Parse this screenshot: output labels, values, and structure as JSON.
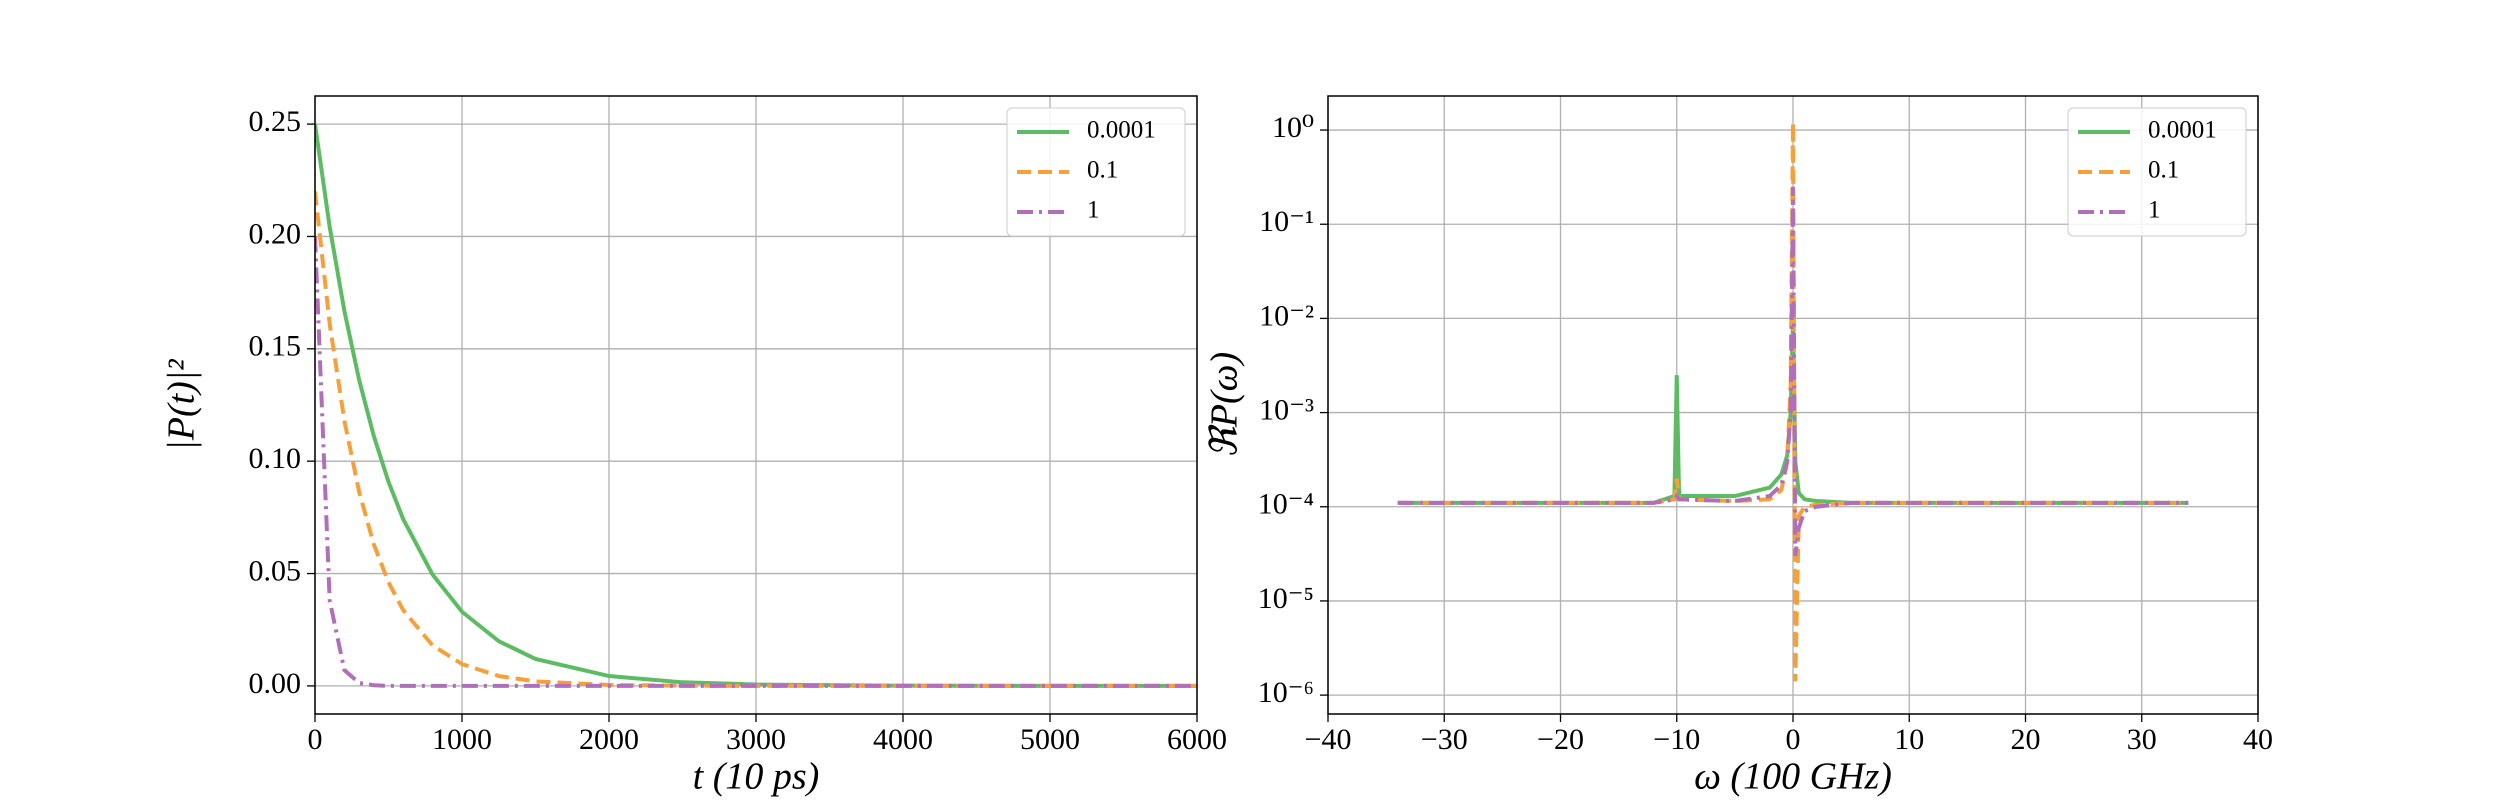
{
  "chart_data": [
    {
      "type": "line",
      "xlabel": "t (10 ps)",
      "ylabel": "|P(t)|²",
      "x": [
        0,
        100,
        200,
        300,
        400,
        500,
        600,
        800,
        1000,
        1250,
        1500,
        2000,
        2500,
        3000,
        4000,
        5000,
        6000
      ],
      "series": [
        {
          "name": "0.0001",
          "color": "#5dbb63",
          "dash": "solid",
          "values": [
            0.25,
            0.2042,
            0.1668,
            0.1362,
            0.1112,
            0.0908,
            0.0742,
            0.0495,
            0.033,
            0.0199,
            0.012,
            0.0044,
            0.0016,
            0.0006,
            0.0001,
            0,
            0
          ]
        },
        {
          "name": "0.1",
          "color": "#f5a03a",
          "dash": "dashed",
          "values": [
            0.22,
            0.161,
            0.118,
            0.0864,
            0.063,
            0.0461,
            0.0337,
            0.018,
            0.0097,
            0.0044,
            0.002,
            0.0004,
            0.0001,
            0,
            0,
            0,
            0
          ]
        },
        {
          "name": "1",
          "color": "#b06fb8",
          "dash": "dashdot",
          "values": [
            0.2,
            0.038,
            0.007,
            0.0013,
            0.0003,
            0,
            0,
            0,
            0,
            0,
            0,
            0,
            0,
            0,
            0,
            0,
            0
          ]
        }
      ],
      "xlim": [
        0,
        6000
      ],
      "xticks": [
        0,
        1000,
        2000,
        3000,
        4000,
        5000,
        6000
      ],
      "ylim": [
        -0.0125,
        0.2625
      ],
      "yticks": [
        {
          "value": 0,
          "label": "0.00"
        },
        {
          "value": 0.05,
          "label": "0.05"
        },
        {
          "value": 0.1,
          "label": "0.10"
        },
        {
          "value": 0.15,
          "label": "0.15"
        },
        {
          "value": 0.2,
          "label": "0.20"
        },
        {
          "value": 0.25,
          "label": "0.25"
        }
      ],
      "log": false,
      "grid": true,
      "legend": "upper right"
    },
    {
      "type": "line",
      "xlabel": "ω (100 GHz)",
      "ylabel": "ℜP(ω)",
      "x": [
        -34,
        -12,
        -10.2,
        -10,
        -9.8,
        -5,
        -2,
        -1,
        -0.5,
        -0.2,
        0,
        0.2,
        0.5,
        1,
        2,
        5,
        12,
        34
      ],
      "series": [
        {
          "name": "0.0001",
          "color": "#5dbb63",
          "dash": "solid",
          "values": [
            0.00011,
            0.00011,
            0.00013,
            0.0025,
            0.00013,
            0.00013,
            0.00016,
            0.00022,
            0.00035,
            0.001,
            0.01,
            0.0003,
            0.00014,
            0.00012,
            0.000115,
            0.00011,
            0.00011,
            0.00011
          ]
        },
        {
          "name": "0.1",
          "color": "#f5a03a",
          "dash": "dashed",
          "values": [
            0.00011,
            0.00011,
            0.00012,
            0.0002,
            0.00012,
            0.000115,
            0.00012,
            0.00015,
            0.0003,
            0.002,
            1.2,
            1.4e-06,
            8e-05,
            0.0001,
            0.000105,
            0.00011,
            0.00011,
            0.00011
          ]
        },
        {
          "name": "1",
          "color": "#b06fb8",
          "dash": "dashdot",
          "values": [
            0.00011,
            0.00011,
            0.00012,
            0.00013,
            0.00012,
            0.000115,
            0.00013,
            0.00017,
            0.0003,
            0.001,
            0.25,
            3e-05,
            6e-05,
            9e-05,
            0.0001,
            0.00011,
            0.00011,
            0.00011
          ]
        }
      ],
      "xlim": [
        -40,
        40
      ],
      "xticks": [
        {
          "value": -40,
          "label": "−40"
        },
        {
          "value": -30,
          "label": "−30"
        },
        {
          "value": -20,
          "label": "−20"
        },
        {
          "value": -10,
          "label": "−10"
        },
        0,
        10,
        20,
        30,
        40
      ],
      "ylim": [
        6.3e-07,
        2.3
      ],
      "yticks": [
        {
          "value": 1e-06,
          "label": "10⁻⁶"
        },
        {
          "value": 1e-05,
          "label": "10⁻⁵"
        },
        {
          "value": 0.0001,
          "label": "10⁻⁴"
        },
        {
          "value": 0.001,
          "label": "10⁻³"
        },
        {
          "value": 0.01,
          "label": "10⁻²"
        },
        {
          "value": 0.1,
          "label": "10⁻¹"
        },
        {
          "value": 1,
          "label": "10⁰"
        }
      ],
      "log": true,
      "grid": true,
      "legend": "upper right"
    }
  ]
}
